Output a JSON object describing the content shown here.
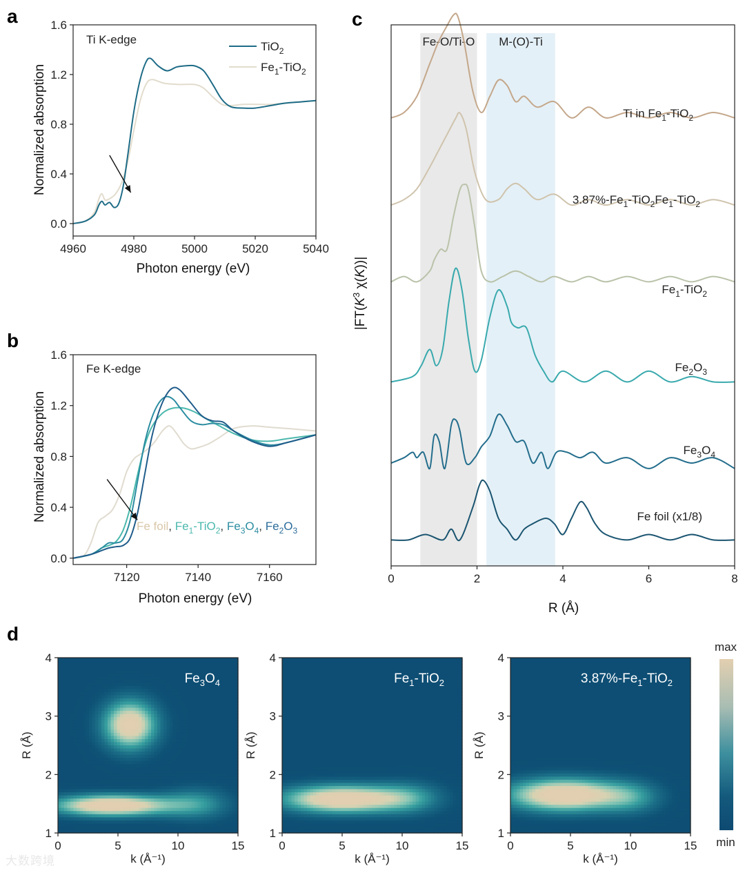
{
  "panels": {
    "a": "a",
    "b": "b",
    "c": "c",
    "d": "d"
  },
  "chart_data": [
    {
      "id": "a",
      "type": "line",
      "annotation": "Ti K-edge",
      "xlabel": "Photon energy (eV)",
      "ylabel": "Normalized absorption",
      "xlim": [
        4960,
        5040
      ],
      "ylim": [
        -0.1,
        1.6
      ],
      "xticks": [
        "4960",
        "4980",
        "5000",
        "5020",
        "5040"
      ],
      "yticks": [
        "0.0",
        "0.4",
        "0.8",
        "1.2",
        "1.6"
      ],
      "legend_position": "top-right",
      "series": [
        {
          "name": "TiO2",
          "label_base": "TiO",
          "label_sub": "2",
          "color": "#1d6b86",
          "x": [
            4960,
            4964,
            4967,
            4968.5,
            4969.5,
            4970.5,
            4972,
            4973.5,
            4975,
            4976.5,
            4978,
            4980,
            4982,
            4984,
            4985.5,
            4988,
            4991,
            4994,
            4997,
            5000,
            5003,
            5006,
            5009,
            5012,
            5016,
            5020,
            5025,
            5030,
            5035,
            5040
          ],
          "y": [
            0.0,
            0.02,
            0.07,
            0.15,
            0.18,
            0.15,
            0.17,
            0.13,
            0.16,
            0.3,
            0.55,
            0.9,
            1.15,
            1.3,
            1.33,
            1.27,
            1.23,
            1.26,
            1.27,
            1.27,
            1.23,
            1.12,
            1.0,
            0.94,
            0.93,
            0.93,
            0.95,
            0.97,
            0.98,
            0.99
          ]
        },
        {
          "name": "Fe1-TiO2",
          "label_base": "Fe",
          "label_sub1": "1",
          "label_mid": "-TiO",
          "label_sub2": "2",
          "color": "#e2dccd",
          "x": [
            4960,
            4964,
            4967,
            4968.5,
            4969.5,
            4970.5,
            4972,
            4974,
            4976,
            4978,
            4980,
            4982,
            4984,
            4986,
            4990,
            4995,
            5000,
            5003,
            5006,
            5009,
            5012,
            5016,
            5020,
            5025,
            5030,
            5035,
            5040
          ],
          "y": [
            0.0,
            0.02,
            0.09,
            0.2,
            0.24,
            0.19,
            0.2,
            0.24,
            0.33,
            0.5,
            0.75,
            0.98,
            1.12,
            1.16,
            1.13,
            1.12,
            1.12,
            1.09,
            1.02,
            0.96,
            0.95,
            0.96,
            0.96,
            0.96,
            0.97,
            0.98,
            0.99
          ]
        }
      ],
      "arrow": {
        "from": [
          4972,
          0.55
        ],
        "to": [
          4979,
          0.25
        ]
      }
    },
    {
      "id": "b",
      "type": "line",
      "annotation": "Fe K-edge",
      "xlabel": "Photon energy (eV)",
      "ylabel": "Normalized absorption",
      "xlim": [
        7105,
        7173
      ],
      "ylim": [
        -0.05,
        1.6
      ],
      "xticks": [
        "7120",
        "7140",
        "7160"
      ],
      "xtick_values": [
        7120,
        7140,
        7160
      ],
      "yticks": [
        "0.0",
        "0.4",
        "0.8",
        "1.2",
        "1.6"
      ],
      "legend_inline": [
        {
          "base": "Fe foil",
          "color": "#d9c7a8"
        },
        {
          "sep": ", ",
          "color": "#333333"
        },
        {
          "base": "Fe",
          "sub": "1",
          "base2": "-TiO",
          "sub2": "2",
          "color": "#4bb8ad"
        },
        {
          "sep": ", ",
          "color": "#333333"
        },
        {
          "base": "Fe",
          "sub": "3",
          "base2": "O",
          "sub2": "4",
          "color": "#2a8ca0"
        },
        {
          "sep": ", ",
          "color": "#333333"
        },
        {
          "base": "Fe",
          "sub": "2",
          "base2": "O",
          "sub2": "3",
          "color": "#2a6b99"
        }
      ],
      "series": [
        {
          "name": "Fe foil",
          "color": "#e0dbcf",
          "x": [
            7105,
            7108,
            7110,
            7112,
            7114,
            7116,
            7118,
            7120,
            7122,
            7124,
            7126,
            7128,
            7130,
            7132,
            7134,
            7136,
            7138,
            7140,
            7143,
            7146,
            7150,
            7155,
            7160,
            7165,
            7173
          ],
          "y": [
            0.0,
            0.02,
            0.12,
            0.28,
            0.33,
            0.38,
            0.5,
            0.68,
            0.78,
            0.82,
            0.86,
            0.92,
            1.0,
            1.04,
            0.98,
            0.9,
            0.86,
            0.87,
            0.9,
            0.95,
            1.02,
            1.04,
            1.03,
            1.02,
            1.0
          ]
        },
        {
          "name": "Fe1-TiO2",
          "color": "#4bb8ad",
          "x": [
            7105,
            7110,
            7113,
            7115,
            7117,
            7119,
            7121,
            7123,
            7125,
            7127,
            7130,
            7133,
            7136,
            7139,
            7142,
            7146,
            7150,
            7155,
            7160,
            7165,
            7173
          ],
          "y": [
            0.0,
            0.03,
            0.08,
            0.1,
            0.13,
            0.22,
            0.4,
            0.65,
            0.88,
            1.03,
            1.14,
            1.18,
            1.18,
            1.15,
            1.1,
            1.04,
            0.98,
            0.93,
            0.92,
            0.94,
            0.97
          ]
        },
        {
          "name": "Fe3O4",
          "color": "#2a8ca0",
          "x": [
            7105,
            7110,
            7113,
            7115,
            7117,
            7119,
            7121,
            7123,
            7125,
            7127,
            7129,
            7131,
            7133,
            7135,
            7138,
            7141,
            7144,
            7147,
            7150,
            7155,
            7160,
            7165,
            7173
          ],
          "y": [
            0.0,
            0.03,
            0.08,
            0.12,
            0.12,
            0.15,
            0.3,
            0.6,
            0.9,
            1.1,
            1.22,
            1.27,
            1.25,
            1.18,
            1.08,
            1.05,
            1.06,
            1.05,
            1.0,
            0.93,
            0.89,
            0.91,
            0.97
          ]
        },
        {
          "name": "Fe2O3",
          "color": "#1f5c8a",
          "x": [
            7105,
            7110,
            7113,
            7115,
            7117,
            7119,
            7121,
            7123,
            7125,
            7127,
            7129,
            7131,
            7133,
            7135,
            7138,
            7141,
            7144,
            7147,
            7150,
            7155,
            7160,
            7165,
            7173
          ],
          "y": [
            0.0,
            0.03,
            0.06,
            0.08,
            0.09,
            0.1,
            0.16,
            0.35,
            0.65,
            0.95,
            1.15,
            1.28,
            1.34,
            1.32,
            1.22,
            1.12,
            1.08,
            1.07,
            1.0,
            0.92,
            0.88,
            0.91,
            0.97
          ]
        }
      ],
      "arrow": {
        "from": [
          7114.5,
          0.62
        ],
        "to": [
          7123,
          0.3
        ]
      }
    },
    {
      "id": "c",
      "type": "line",
      "xlabel": "R (Å)",
      "ylabel_parts": [
        "|FT(",
        "K",
        "3",
        " χ(",
        "K",
        "))|"
      ],
      "xlim": [
        0,
        8
      ],
      "ylim": [
        0,
        1
      ],
      "xticks": [
        "0",
        "2",
        "4",
        "6",
        "8"
      ],
      "xtick_values": [
        0,
        2,
        4,
        6,
        8
      ],
      "bands": [
        {
          "label": "Fe-O/Ti-O",
          "x0": 0.68,
          "x1": 2.0,
          "color": "#e9e9e9"
        },
        {
          "label": "M-(O)-Ti",
          "x0": 2.22,
          "x1": 3.82,
          "color": "#e4f0f7"
        }
      ],
      "series": [
        {
          "name": "Ti in Fe1-TiO2",
          "label_parts": [
            "Ti in Fe",
            "1",
            "-TiO",
            "2"
          ],
          "color": "#c4a78a",
          "offset": 0.828,
          "x": [
            0,
            0.3,
            0.6,
            0.9,
            1.1,
            1.3,
            1.45,
            1.55,
            1.7,
            1.9,
            2.1,
            2.3,
            2.5,
            2.7,
            2.9,
            3.1,
            3.4,
            3.8,
            4.2,
            4.6,
            5.0,
            5.5,
            6.0,
            6.5,
            7.0,
            7.5,
            8.0
          ],
          "y": [
            0.0,
            0.01,
            0.04,
            0.1,
            0.14,
            0.17,
            0.19,
            0.188,
            0.14,
            0.05,
            0.01,
            0.04,
            0.07,
            0.06,
            0.03,
            0.04,
            0.02,
            0.03,
            0.0,
            0.02,
            0.0,
            0.01,
            0.0,
            0.01,
            0.0,
            0.01,
            0.0
          ]
        },
        {
          "name": "3.87%-Fe1-TiO2",
          "label_parts": [
            "3.87%-Fe",
            "1",
            "-TiO",
            "2",
            "Fe",
            "1",
            "-TiO",
            "2"
          ],
          "color": "#cfc3ac",
          "offset": 0.667,
          "x": [
            0,
            0.3,
            0.6,
            0.9,
            1.1,
            1.3,
            1.5,
            1.6,
            1.75,
            1.95,
            2.2,
            2.5,
            2.7,
            2.9,
            3.1,
            3.4,
            3.8,
            4.2,
            4.6,
            5.0,
            5.5,
            6.0,
            6.5,
            7.0,
            7.5,
            8.0
          ],
          "y": [
            0.0,
            0.01,
            0.03,
            0.07,
            0.1,
            0.13,
            0.16,
            0.17,
            0.14,
            0.06,
            0.01,
            0.01,
            0.03,
            0.04,
            0.03,
            0.01,
            0.02,
            0.0,
            0.01,
            0.0,
            0.01,
            0.0,
            0.01,
            0.0,
            0.01,
            0.0
          ]
        },
        {
          "name": "Fe1-TiO2",
          "label_parts": [
            "Fe",
            "1",
            "-TiO",
            "2"
          ],
          "color": "#b9c2a9",
          "offset": 0.525,
          "x": [
            0,
            0.3,
            0.6,
            0.9,
            1.0,
            1.15,
            1.3,
            1.45,
            1.6,
            1.7,
            1.8,
            1.95,
            2.1,
            2.3,
            2.6,
            2.9,
            3.2,
            3.5,
            3.8,
            4.2,
            4.6,
            5.0,
            5.5,
            6.0,
            6.5,
            7.0,
            7.5,
            8.0
          ],
          "y": [
            0.0,
            0.01,
            0.0,
            0.02,
            0.04,
            0.06,
            0.06,
            0.12,
            0.17,
            0.18,
            0.17,
            0.1,
            0.02,
            0.0,
            0.01,
            0.02,
            0.01,
            0.0,
            0.01,
            0.0,
            0.01,
            0.0,
            0.01,
            0.0,
            0.01,
            0.0,
            0.01,
            0.0
          ]
        },
        {
          "name": "Fe2O3",
          "label_parts": [
            "Fe",
            "2",
            "O",
            "3"
          ],
          "color": "#38a9ad",
          "offset": 0.34,
          "x": [
            0,
            0.5,
            0.7,
            0.9,
            1.05,
            1.2,
            1.35,
            1.5,
            1.65,
            1.8,
            1.95,
            2.1,
            2.3,
            2.5,
            2.7,
            2.8,
            2.95,
            3.15,
            3.35,
            3.55,
            3.75,
            4.0,
            4.5,
            5.0,
            5.5,
            6.0,
            6.5,
            7.0,
            7.5,
            8.0
          ],
          "y": [
            0.0,
            0.01,
            0.03,
            0.06,
            0.03,
            0.06,
            0.15,
            0.21,
            0.17,
            0.08,
            0.02,
            0.04,
            0.12,
            0.17,
            0.14,
            0.11,
            0.1,
            0.1,
            0.05,
            0.02,
            0.0,
            0.02,
            0.0,
            0.02,
            0.0,
            0.02,
            0.0,
            0.01,
            0.0,
            0.0
          ]
        },
        {
          "name": "Fe3O4",
          "label_parts": [
            "Fe",
            "3",
            "O",
            "4"
          ],
          "color": "#236d8c",
          "offset": 0.19,
          "x": [
            0,
            0.3,
            0.5,
            0.6,
            0.75,
            0.9,
            1.0,
            1.12,
            1.25,
            1.4,
            1.5,
            1.6,
            1.75,
            1.95,
            2.1,
            2.3,
            2.5,
            2.7,
            2.9,
            3.1,
            3.3,
            3.5,
            3.65,
            3.85,
            4.1,
            4.4,
            4.7,
            5.0,
            5.5,
            6.0,
            6.5,
            7.0,
            7.5,
            8.0
          ],
          "y": [
            0.0,
            0.01,
            0.02,
            0.01,
            0.02,
            -0.01,
            0.05,
            0.04,
            -0.01,
            0.07,
            0.08,
            0.06,
            0.0,
            0.01,
            0.03,
            0.05,
            0.09,
            0.07,
            0.04,
            0.04,
            0.0,
            0.02,
            -0.01,
            0.02,
            0.02,
            0.01,
            0.02,
            0.0,
            0.01,
            -0.01,
            0.01,
            0.0,
            0.01,
            -0.01
          ]
        },
        {
          "name": "Fe foil (x1/8)",
          "label_parts": [
            "Fe foil (x1/8)"
          ],
          "color": "#1a5470",
          "offset": 0.048,
          "x": [
            0,
            0.4,
            0.8,
            1.2,
            1.4,
            1.6,
            1.9,
            2.05,
            2.15,
            2.3,
            2.5,
            2.7,
            2.9,
            3.1,
            3.3,
            3.6,
            3.8,
            4.0,
            4.2,
            4.4,
            4.55,
            4.75,
            5.0,
            5.5,
            6.0,
            6.5,
            7.0,
            7.5,
            8.0
          ],
          "y": [
            0.0,
            0.0,
            0.01,
            0.0,
            0.02,
            0.0,
            0.06,
            0.1,
            0.11,
            0.09,
            0.04,
            0.02,
            0.0,
            0.02,
            0.03,
            0.04,
            0.03,
            0.01,
            0.04,
            0.07,
            0.06,
            0.03,
            0.01,
            0.0,
            0.01,
            0.0,
            0.01,
            0.0,
            0.0
          ]
        }
      ]
    },
    {
      "id": "d",
      "type": "heatmap",
      "xlabel": "k (Å⁻¹)",
      "ylabel": "R (Å)",
      "xlim": [
        0,
        15
      ],
      "ylim": [
        1,
        4
      ],
      "xticks": [
        "0",
        "5",
        "10",
        "15"
      ],
      "xtick_values": [
        0,
        5,
        10,
        15
      ],
      "yticks": [
        "1",
        "2",
        "3",
        "4"
      ],
      "ytick_values": [
        1,
        2,
        3,
        4
      ],
      "colorbar": {
        "max_label": "max",
        "min_label": "min"
      },
      "maps": [
        {
          "title": "Fe3O4",
          "title_parts": [
            "Fe",
            "3",
            "O",
            "4"
          ],
          "blobs": [
            {
              "k": 4.5,
              "R": 1.47,
              "sk": 3.5,
              "sR": 0.13,
              "a": 1.0
            },
            {
              "k": 6.0,
              "R": 2.85,
              "sk": 1.6,
              "sR": 0.3,
              "a": 0.92
            },
            {
              "k": 11.5,
              "R": 1.5,
              "sk": 2.0,
              "sR": 0.2,
              "a": 0.35
            }
          ]
        },
        {
          "title": "Fe1-TiO2",
          "title_parts": [
            "Fe",
            "1",
            "-TiO",
            "2"
          ],
          "blobs": [
            {
              "k": 5.0,
              "R": 1.58,
              "sk": 3.6,
              "sR": 0.17,
              "a": 0.98
            },
            {
              "k": 10.5,
              "R": 1.6,
              "sk": 2.0,
              "sR": 0.2,
              "a": 0.3
            }
          ]
        },
        {
          "title": "3.87%-Fe1-TiO2",
          "title_parts": [
            "3.87%-Fe",
            "1",
            "-TiO",
            "2"
          ],
          "blobs": [
            {
              "k": 4.5,
              "R": 1.65,
              "sk": 3.4,
              "sR": 0.2,
              "a": 1.0
            },
            {
              "k": 10.0,
              "R": 1.6,
              "sk": 1.8,
              "sR": 0.2,
              "a": 0.3
            }
          ]
        }
      ]
    }
  ],
  "watermark": "大数跨境"
}
